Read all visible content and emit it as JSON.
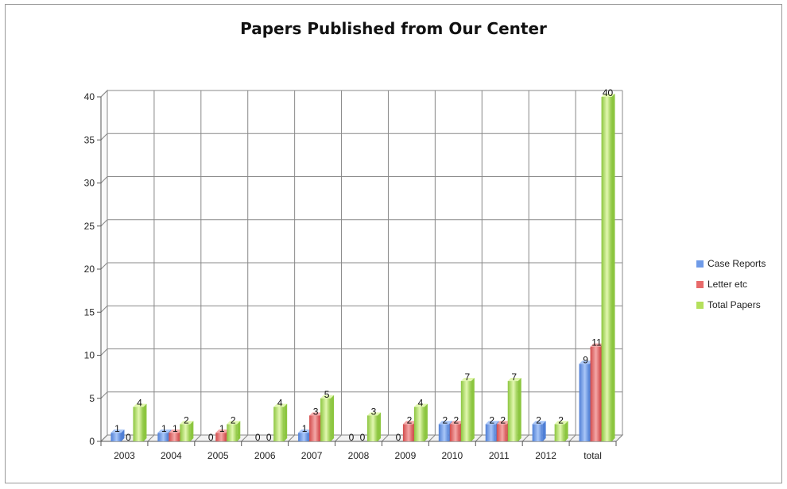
{
  "chart_data": {
    "type": "bar",
    "title": "Papers Published from Our Center",
    "categories": [
      "2003",
      "2004",
      "2005",
      "2006",
      "2007",
      "2008",
      "2009",
      "2010",
      "2011",
      "2012",
      "total"
    ],
    "series": [
      {
        "name": "Case Reports",
        "values": [
          1,
          1,
          0,
          0,
          1,
          0,
          0,
          2,
          2,
          2,
          9
        ],
        "color": "#6f9be8"
      },
      {
        "name": "Letter etc",
        "values": [
          0,
          1,
          1,
          0,
          3,
          0,
          2,
          2,
          2,
          null,
          11
        ],
        "color": "#e86a6a"
      },
      {
        "name": "Total Papers",
        "values": [
          4,
          2,
          2,
          4,
          5,
          3,
          4,
          7,
          7,
          2,
          40
        ],
        "color": "#b4e05c"
      }
    ],
    "ylim": [
      0,
      40
    ],
    "yticks": [
      0,
      5,
      10,
      15,
      20,
      25,
      30,
      35,
      40
    ],
    "grid": true,
    "legend": "right"
  }
}
